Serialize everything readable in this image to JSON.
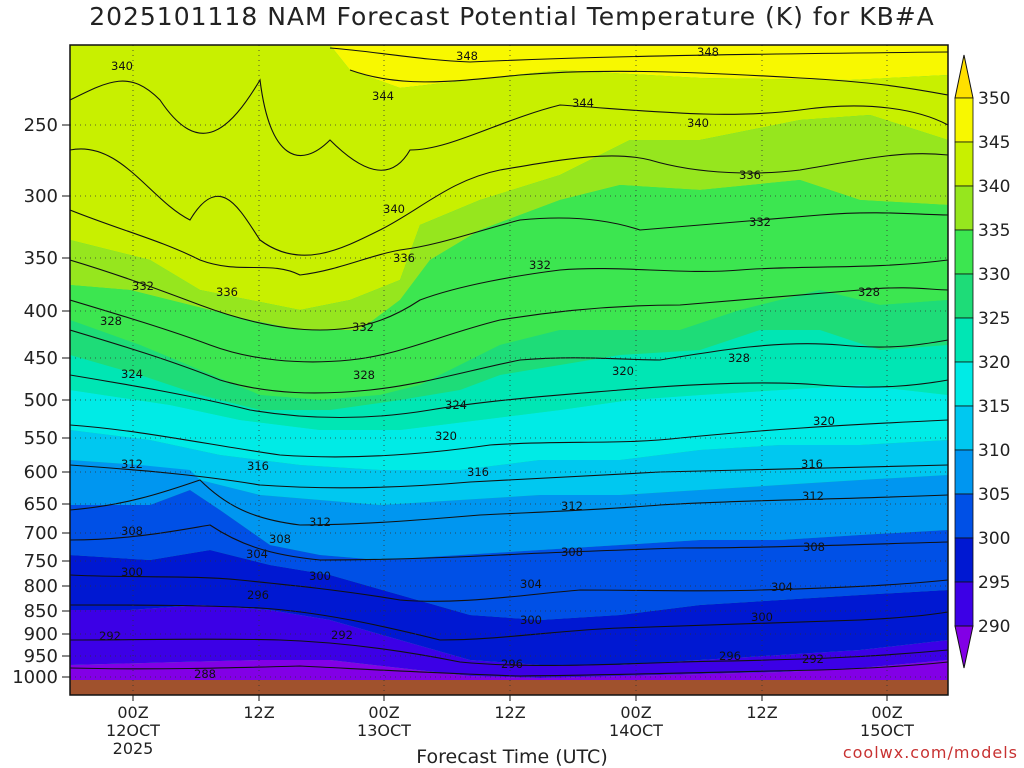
{
  "title": "2025101118 NAM Forecast Potential Temperature (K) for KB#A",
  "x_axis_title": "Forecast Time (UTC)",
  "credit": "coolwx.com/models",
  "y_ticks": [
    "250",
    "300",
    "350",
    "400",
    "450",
    "500",
    "550",
    "600",
    "650",
    "700",
    "750",
    "800",
    "850",
    "900",
    "950",
    "1000"
  ],
  "x_ticks": [
    {
      "l1": "00Z",
      "l2": "12OCT",
      "l3": "2025"
    },
    {
      "l1": "12Z",
      "l2": "",
      "l3": ""
    },
    {
      "l1": "00Z",
      "l2": "13OCT",
      "l3": ""
    },
    {
      "l1": "12Z",
      "l2": "",
      "l3": ""
    },
    {
      "l1": "00Z",
      "l2": "14OCT",
      "l3": ""
    },
    {
      "l1": "12Z",
      "l2": "",
      "l3": ""
    },
    {
      "l1": "00Z",
      "l2": "15OCT",
      "l3": ""
    }
  ],
  "colorbar_labels": [
    "350",
    "345",
    "340",
    "335",
    "330",
    "325",
    "320",
    "315",
    "310",
    "305",
    "300",
    "295",
    "290"
  ],
  "colorbar_colors": [
    "#ffe000",
    "#f8f800",
    "#c8f000",
    "#96e61e",
    "#3ce650",
    "#1edc78",
    "#00e6b4",
    "#00ebe6",
    "#00c8f0",
    "#0096f0",
    "#0050e6",
    "#0018d2",
    "#3c00e6",
    "#8200e6"
  ],
  "chart_data": {
    "type": "contour",
    "x": [
      "00Z 12OCT",
      "12Z",
      "00Z 13OCT",
      "12Z",
      "00Z 14OCT",
      "12Z",
      "00Z 15OCT"
    ],
    "y_label_units": "hPa",
    "color_scale_min": 290,
    "color_scale_max": 350,
    "contour_labels": [
      {
        "value": "340"
      },
      {
        "value": "348"
      },
      {
        "value": "348"
      },
      {
        "value": "344"
      },
      {
        "value": "344"
      },
      {
        "value": "340"
      },
      {
        "value": "336"
      },
      {
        "value": "340"
      },
      {
        "value": "332"
      },
      {
        "value": "336"
      },
      {
        "value": "332"
      },
      {
        "value": "332"
      },
      {
        "value": "336"
      },
      {
        "value": "328"
      },
      {
        "value": "328"
      },
      {
        "value": "332"
      },
      {
        "value": "328"
      },
      {
        "value": "324"
      },
      {
        "value": "320"
      },
      {
        "value": "328"
      },
      {
        "value": "324"
      },
      {
        "value": "320"
      },
      {
        "value": "320"
      },
      {
        "value": "312"
      },
      {
        "value": "316"
      },
      {
        "value": "316"
      },
      {
        "value": "316"
      },
      {
        "value": "312"
      },
      {
        "value": "312"
      },
      {
        "value": "312"
      },
      {
        "value": "308"
      },
      {
        "value": "308"
      },
      {
        "value": "304"
      },
      {
        "value": "308"
      },
      {
        "value": "308"
      },
      {
        "value": "300"
      },
      {
        "value": "300"
      },
      {
        "value": "304"
      },
      {
        "value": "304"
      },
      {
        "value": "296"
      },
      {
        "value": "300"
      },
      {
        "value": "300"
      },
      {
        "value": "292"
      },
      {
        "value": "292"
      },
      {
        "value": "296"
      },
      {
        "value": "296"
      },
      {
        "value": "292"
      },
      {
        "value": "288"
      }
    ]
  }
}
